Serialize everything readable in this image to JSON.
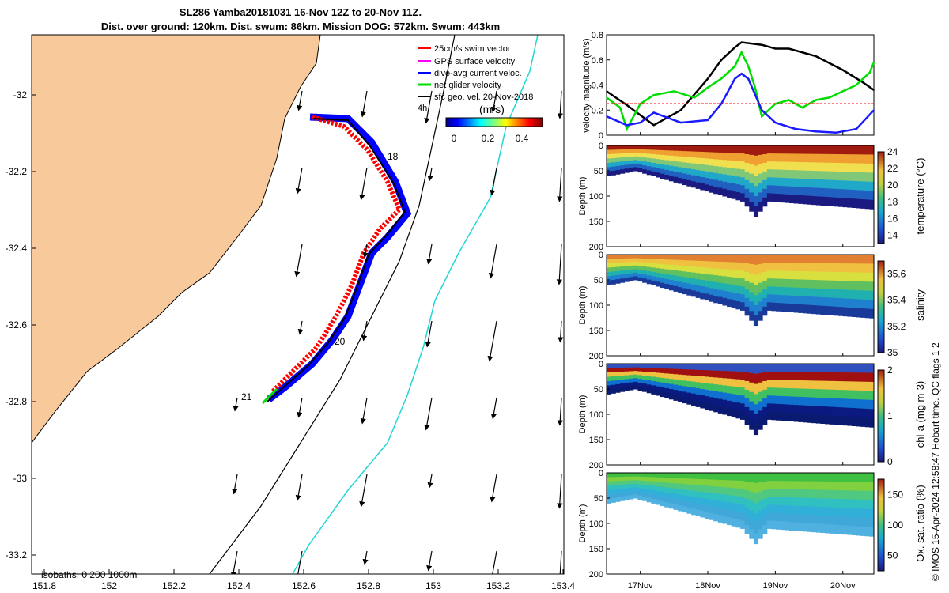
{
  "title": {
    "line1": "SL286 Yamba20181031 16-Nov 12Z to 20-Nov 11Z.",
    "line2": "Dist. over ground: 120km. Dist. swum: 86km. Mission DOG: 572km. Swum: 443km"
  },
  "map": {
    "x_ticks": [
      "151.8",
      "152",
      "152.2",
      "152.4",
      "152.6",
      "152.8",
      "153",
      "153.2",
      "153.4"
    ],
    "y_ticks": [
      "-32",
      "-32.2",
      "-32.4",
      "-32.6",
      "-32.8",
      "-33",
      "-33.2"
    ],
    "legend": [
      {
        "label": "25cm/s swim vector",
        "color": "#ff0000"
      },
      {
        "label": "GPS surface velocity",
        "color": "#ff00ff"
      },
      {
        "label": "dive-avg current veloc.",
        "color": "#0000ff"
      },
      {
        "label": "net glider velocity",
        "color": "#00dd00"
      },
      {
        "label": "sfc geo. vel. 20-Nov-2018",
        "color": "#000000"
      }
    ],
    "legend_4h": "4h",
    "colorbar_unit": "(m/s)",
    "colorbar_ticks": [
      "0",
      "0.2",
      "0.4"
    ],
    "day_labels": [
      "18",
      "20",
      "21"
    ],
    "isobaths": "isobaths: 0   200  1000m"
  },
  "chart_data": [
    {
      "type": "line",
      "title": "",
      "ylabel": "velocity magnitude (m/s)",
      "ylim": [
        0,
        0.8
      ],
      "y_ticks": [
        "0",
        "0.2",
        "0.4",
        "0.6",
        "0.8"
      ],
      "x_ticks": [
        "17Nov",
        "18Nov",
        "19Nov",
        "20Nov"
      ],
      "x_range_days": [
        16.5,
        20.46
      ],
      "series": [
        {
          "name": "sfc geo. vel.",
          "color": "#000000",
          "x": [
            16.5,
            16.8,
            17.2,
            17.6,
            18.0,
            18.2,
            18.4,
            18.5,
            18.8,
            19.0,
            19.2,
            19.6,
            20.0,
            20.3,
            20.46
          ],
          "values": [
            0.35,
            0.24,
            0.08,
            0.2,
            0.45,
            0.6,
            0.7,
            0.74,
            0.72,
            0.69,
            0.69,
            0.63,
            0.52,
            0.42,
            0.36
          ]
        },
        {
          "name": "net glider velocity",
          "color": "#00dd00",
          "x": [
            16.5,
            16.7,
            16.8,
            17.0,
            17.2,
            17.5,
            17.8,
            18.0,
            18.2,
            18.4,
            18.5,
            18.6,
            18.7,
            18.8,
            19.0,
            19.2,
            19.4,
            19.6,
            19.8,
            20.0,
            20.2,
            20.4,
            20.46
          ],
          "values": [
            0.3,
            0.22,
            0.05,
            0.25,
            0.32,
            0.35,
            0.3,
            0.38,
            0.45,
            0.55,
            0.66,
            0.55,
            0.38,
            0.15,
            0.25,
            0.28,
            0.22,
            0.28,
            0.3,
            0.35,
            0.4,
            0.5,
            0.58
          ]
        },
        {
          "name": "dive-avg current veloc.",
          "color": "#1a1aff",
          "x": [
            16.5,
            16.8,
            17.0,
            17.2,
            17.6,
            18.0,
            18.2,
            18.4,
            18.5,
            18.6,
            18.8,
            19.0,
            19.3,
            19.6,
            19.9,
            20.2,
            20.46
          ],
          "values": [
            0.15,
            0.08,
            0.1,
            0.18,
            0.1,
            0.12,
            0.25,
            0.45,
            0.49,
            0.45,
            0.2,
            0.1,
            0.05,
            0.03,
            0.02,
            0.05,
            0.2
          ]
        },
        {
          "name": "25cm/s swim vector",
          "color": "#ff0000",
          "x": [
            16.5,
            20.46
          ],
          "values": [
            0.25,
            0.25
          ]
        }
      ]
    },
    {
      "type": "heatmap",
      "ylabel": "Depth (m)",
      "colorbar_label": "temperature (°C)",
      "colorbar_ticks": [
        "14",
        "16",
        "18",
        "20",
        "22",
        "24"
      ],
      "clim": [
        13,
        24
      ],
      "y_ticks": [
        "0",
        "50",
        "100",
        "150",
        "200"
      ],
      "ylim": [
        0,
        200
      ]
    },
    {
      "type": "heatmap",
      "ylabel": "Depth (m)",
      "colorbar_label": "salinity",
      "colorbar_ticks": [
        "35",
        "35.2",
        "35.4",
        "35.6"
      ],
      "clim": [
        35,
        35.7
      ],
      "y_ticks": [
        "0",
        "50",
        "100",
        "150",
        "200"
      ],
      "ylim": [
        0,
        200
      ]
    },
    {
      "type": "heatmap",
      "ylabel": "Depth (m)",
      "colorbar_label": "chl-a (mg m-3)",
      "colorbar_ticks": [
        "0",
        "1",
        "2"
      ],
      "clim": [
        0,
        2
      ],
      "y_ticks": [
        "0",
        "50",
        "100",
        "150",
        "200"
      ],
      "ylim": [
        0,
        200
      ]
    },
    {
      "type": "heatmap",
      "ylabel": "Depth (m)",
      "colorbar_label": "Ox. sat. ratio (%)",
      "colorbar_ticks": [
        "50",
        "100",
        "150"
      ],
      "clim": [
        25,
        175
      ],
      "y_ticks": [
        "0",
        "50",
        "100",
        "150",
        "200"
      ],
      "ylim": [
        0,
        200
      ]
    }
  ],
  "side_note": "© IMOS 15-Apr-2024 12:58:47 Hobart time. QC flags 1  2"
}
